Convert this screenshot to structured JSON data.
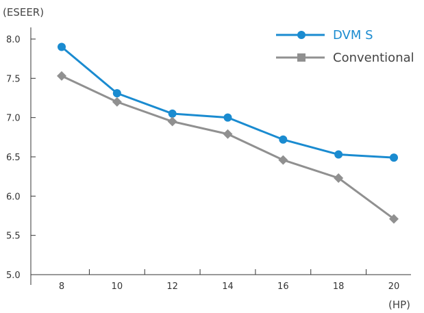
{
  "chart_data": {
    "type": "line",
    "title": "",
    "ylabel": "(ESEER)",
    "xlabel": "(HP)",
    "categories": [
      "8",
      "10",
      "12",
      "14",
      "16",
      "18",
      "20"
    ],
    "x": [
      8,
      10,
      12,
      14,
      16,
      18,
      20
    ],
    "ylim": [
      5.0,
      8.0
    ],
    "yticks": [
      5.0,
      5.5,
      6.0,
      6.5,
      7.0,
      7.5,
      8.0
    ],
    "ytick_labels": [
      "5.0",
      "5.5",
      "6.0",
      "6.5",
      "7.0",
      "7.5",
      "8.0"
    ],
    "grid": false,
    "legend_position": "top-right",
    "series": [
      {
        "name": "DVM S",
        "color": "#1a8bd0",
        "marker": "circle",
        "values": [
          7.9,
          7.31,
          7.05,
          7.0,
          6.72,
          6.53,
          6.49
        ]
      },
      {
        "name": "Conventional",
        "color": "#909090",
        "marker": "diamond",
        "values": [
          7.53,
          7.2,
          6.95,
          6.79,
          6.46,
          6.23,
          5.71
        ]
      }
    ]
  }
}
